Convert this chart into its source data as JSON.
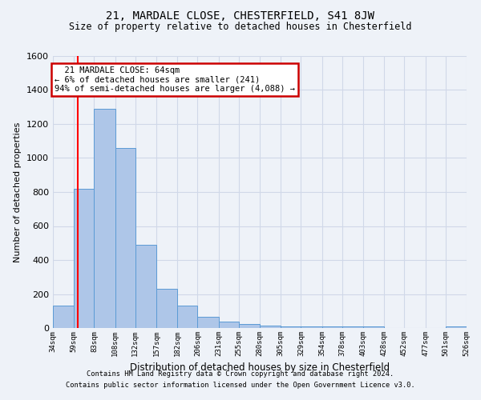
{
  "title1": "21, MARDALE CLOSE, CHESTERFIELD, S41 8JW",
  "title2": "Size of property relative to detached houses in Chesterfield",
  "xlabel": "Distribution of detached houses by size in Chesterfield",
  "ylabel": "Number of detached properties",
  "footer1": "Contains HM Land Registry data © Crown copyright and database right 2024.",
  "footer2": "Contains public sector information licensed under the Open Government Licence v3.0.",
  "annotation_title": "21 MARDALE CLOSE: 64sqm",
  "annotation_line2": "← 6% of detached houses are smaller (241)",
  "annotation_line3": "94% of semi-detached houses are larger (4,088) →",
  "property_size": 64,
  "bar_edges": [
    34,
    59,
    83,
    108,
    132,
    157,
    182,
    206,
    231,
    255,
    280,
    305,
    329,
    354,
    378,
    403,
    428,
    452,
    477,
    501,
    526
  ],
  "bar_heights": [
    130,
    820,
    1290,
    1060,
    490,
    230,
    130,
    65,
    40,
    25,
    15,
    10,
    10,
    10,
    10,
    10,
    0,
    0,
    0,
    10
  ],
  "bar_color": "#aec6e8",
  "bar_edge_color": "#5b9bd5",
  "red_line_x": 64,
  "annotation_box_color": "#ffffff",
  "annotation_box_edge": "#cc0000",
  "grid_color": "#d0d8e8",
  "bg_color": "#eef2f8",
  "ylim": [
    0,
    1600
  ],
  "yticks": [
    0,
    200,
    400,
    600,
    800,
    1000,
    1200,
    1400,
    1600
  ]
}
